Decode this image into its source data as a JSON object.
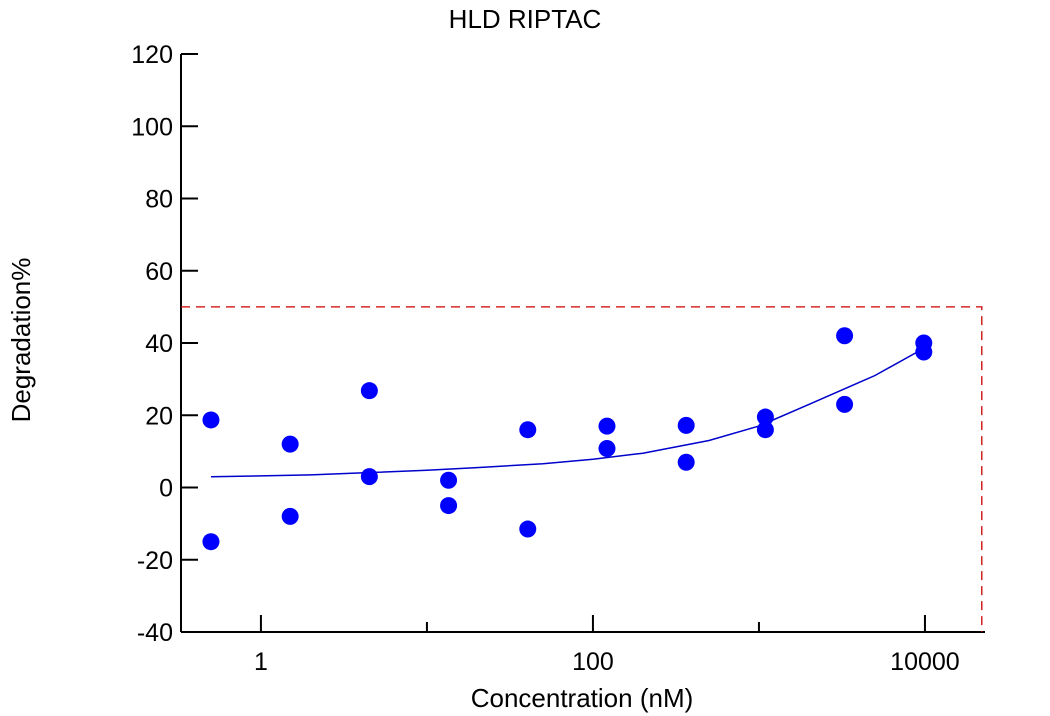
{
  "chart_data": {
    "type": "scatter",
    "title": "HLD RIPTAC",
    "xlabel": "Concentration (nM)",
    "ylabel": "Degradation%",
    "x_scale": "log10",
    "xlim": [
      0.33,
      23000
    ],
    "ylim": [
      -40,
      120
    ],
    "x_ticks": [
      1,
      100,
      10000
    ],
    "x_tick_labels": [
      "1",
      "100",
      "10000"
    ],
    "y_ticks": [
      -40,
      -20,
      0,
      20,
      40,
      60,
      80,
      100,
      120
    ],
    "y_tick_labels": [
      "-40",
      "-20",
      "0",
      "20",
      "40",
      "60",
      "80",
      "100",
      "120"
    ],
    "grid": false,
    "marker_color": "#0000ff",
    "fit_color": "#0000cc",
    "threshold_color": "#cc0000",
    "series": [
      {
        "points": [
          {
            "x": 0.5,
            "y": 18.7
          },
          {
            "x": 0.5,
            "y": -15
          },
          {
            "x": 1.5,
            "y": 12
          },
          {
            "x": 1.5,
            "y": -8
          },
          {
            "x": 4.5,
            "y": 26.8
          },
          {
            "x": 4.5,
            "y": 3
          },
          {
            "x": 13.5,
            "y": 2
          },
          {
            "x": 13.5,
            "y": -5
          },
          {
            "x": 40.5,
            "y": 16
          },
          {
            "x": 40.5,
            "y": -11.5
          },
          {
            "x": 121.5,
            "y": 17
          },
          {
            "x": 121.5,
            "y": 10.8
          },
          {
            "x": 364.5,
            "y": 17.2
          },
          {
            "x": 364.5,
            "y": 7
          },
          {
            "x": 1093.5,
            "y": 19.5
          },
          {
            "x": 1093.5,
            "y": 16
          },
          {
            "x": 3280,
            "y": 42
          },
          {
            "x": 3280,
            "y": 23
          },
          {
            "x": 9840,
            "y": 40
          },
          {
            "x": 9840,
            "y": 37.5
          }
        ]
      }
    ],
    "fit_curve": {
      "x": [
        0.5,
        1,
        2,
        5,
        10,
        20,
        50,
        100,
        200,
        500,
        1000,
        2000,
        5000,
        9840
      ],
      "y": [
        3,
        3.2,
        3.5,
        4.2,
        4.8,
        5.5,
        6.6,
        7.8,
        9.5,
        13,
        17,
        23,
        31,
        38.5
      ]
    },
    "threshold": {
      "y": 50,
      "x": 22000
    }
  }
}
